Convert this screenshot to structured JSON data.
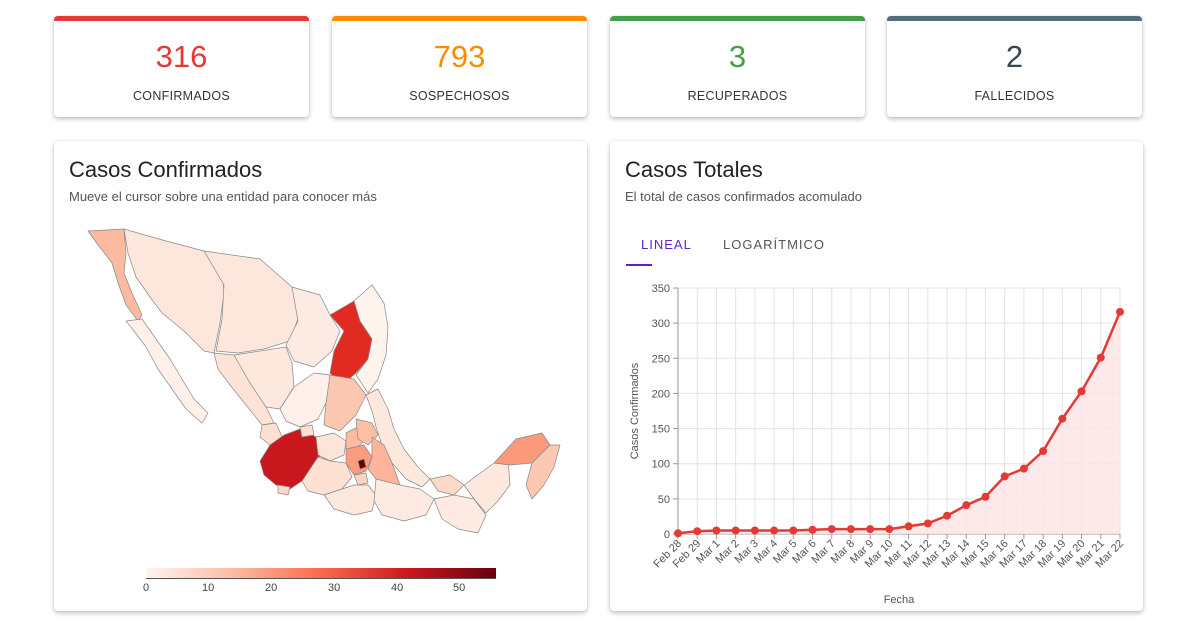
{
  "stats": [
    {
      "value": "316",
      "label": "CONFIRMADOS",
      "color": "#e53935"
    },
    {
      "value": "793",
      "label": "SOSPECHOSOS",
      "color": "#fb8c00"
    },
    {
      "value": "3",
      "label": "RECUPERADOS",
      "color": "#43a047"
    },
    {
      "value": "2",
      "label": "FALLECIDOS",
      "color": "#546e7a"
    }
  ],
  "map_panel": {
    "title": "Casos Confirmados",
    "subtitle": "Mueve el cursor sobre una entidad para conocer más",
    "legend_ticks": [
      "0",
      "10",
      "20",
      "30",
      "40",
      "50"
    ],
    "legend_colors": [
      "#fff5f0",
      "#fcbba1",
      "#fb6a4a",
      "#cb181d",
      "#67000d"
    ]
  },
  "chart_panel": {
    "title": "Casos Totales",
    "subtitle": "El total de casos confirmados acomulado",
    "tabs": [
      {
        "label": "LINEAL",
        "active": true
      },
      {
        "label": "LOGARÍTMICO",
        "active": false
      }
    ]
  },
  "chart_data": {
    "type": "line",
    "xlabel": "Fecha",
    "ylabel": "Casos Confirmados",
    "ylim": [
      0,
      350
    ],
    "yticks": [
      0,
      50,
      100,
      150,
      200,
      250,
      300,
      350
    ],
    "categories": [
      "Feb 28",
      "Feb 29",
      "Mar 1",
      "Mar 2",
      "Mar 3",
      "Mar 4",
      "Mar 5",
      "Mar 6",
      "Mar 7",
      "Mar 8",
      "Mar 9",
      "Mar 10",
      "Mar 11",
      "Mar 12",
      "Mar 13",
      "Mar 14",
      "Mar 15",
      "Mar 16",
      "Mar 17",
      "Mar 18",
      "Mar 19",
      "Mar 20",
      "Mar 21",
      "Mar 22"
    ],
    "values": [
      1,
      4,
      5,
      5,
      5,
      5,
      5,
      6,
      7,
      7,
      7,
      7,
      11,
      15,
      26,
      41,
      53,
      82,
      93,
      118,
      164,
      203,
      251,
      316
    ],
    "grid": true,
    "line_color": "#e53935",
    "fill_color": "#fde3e3"
  }
}
